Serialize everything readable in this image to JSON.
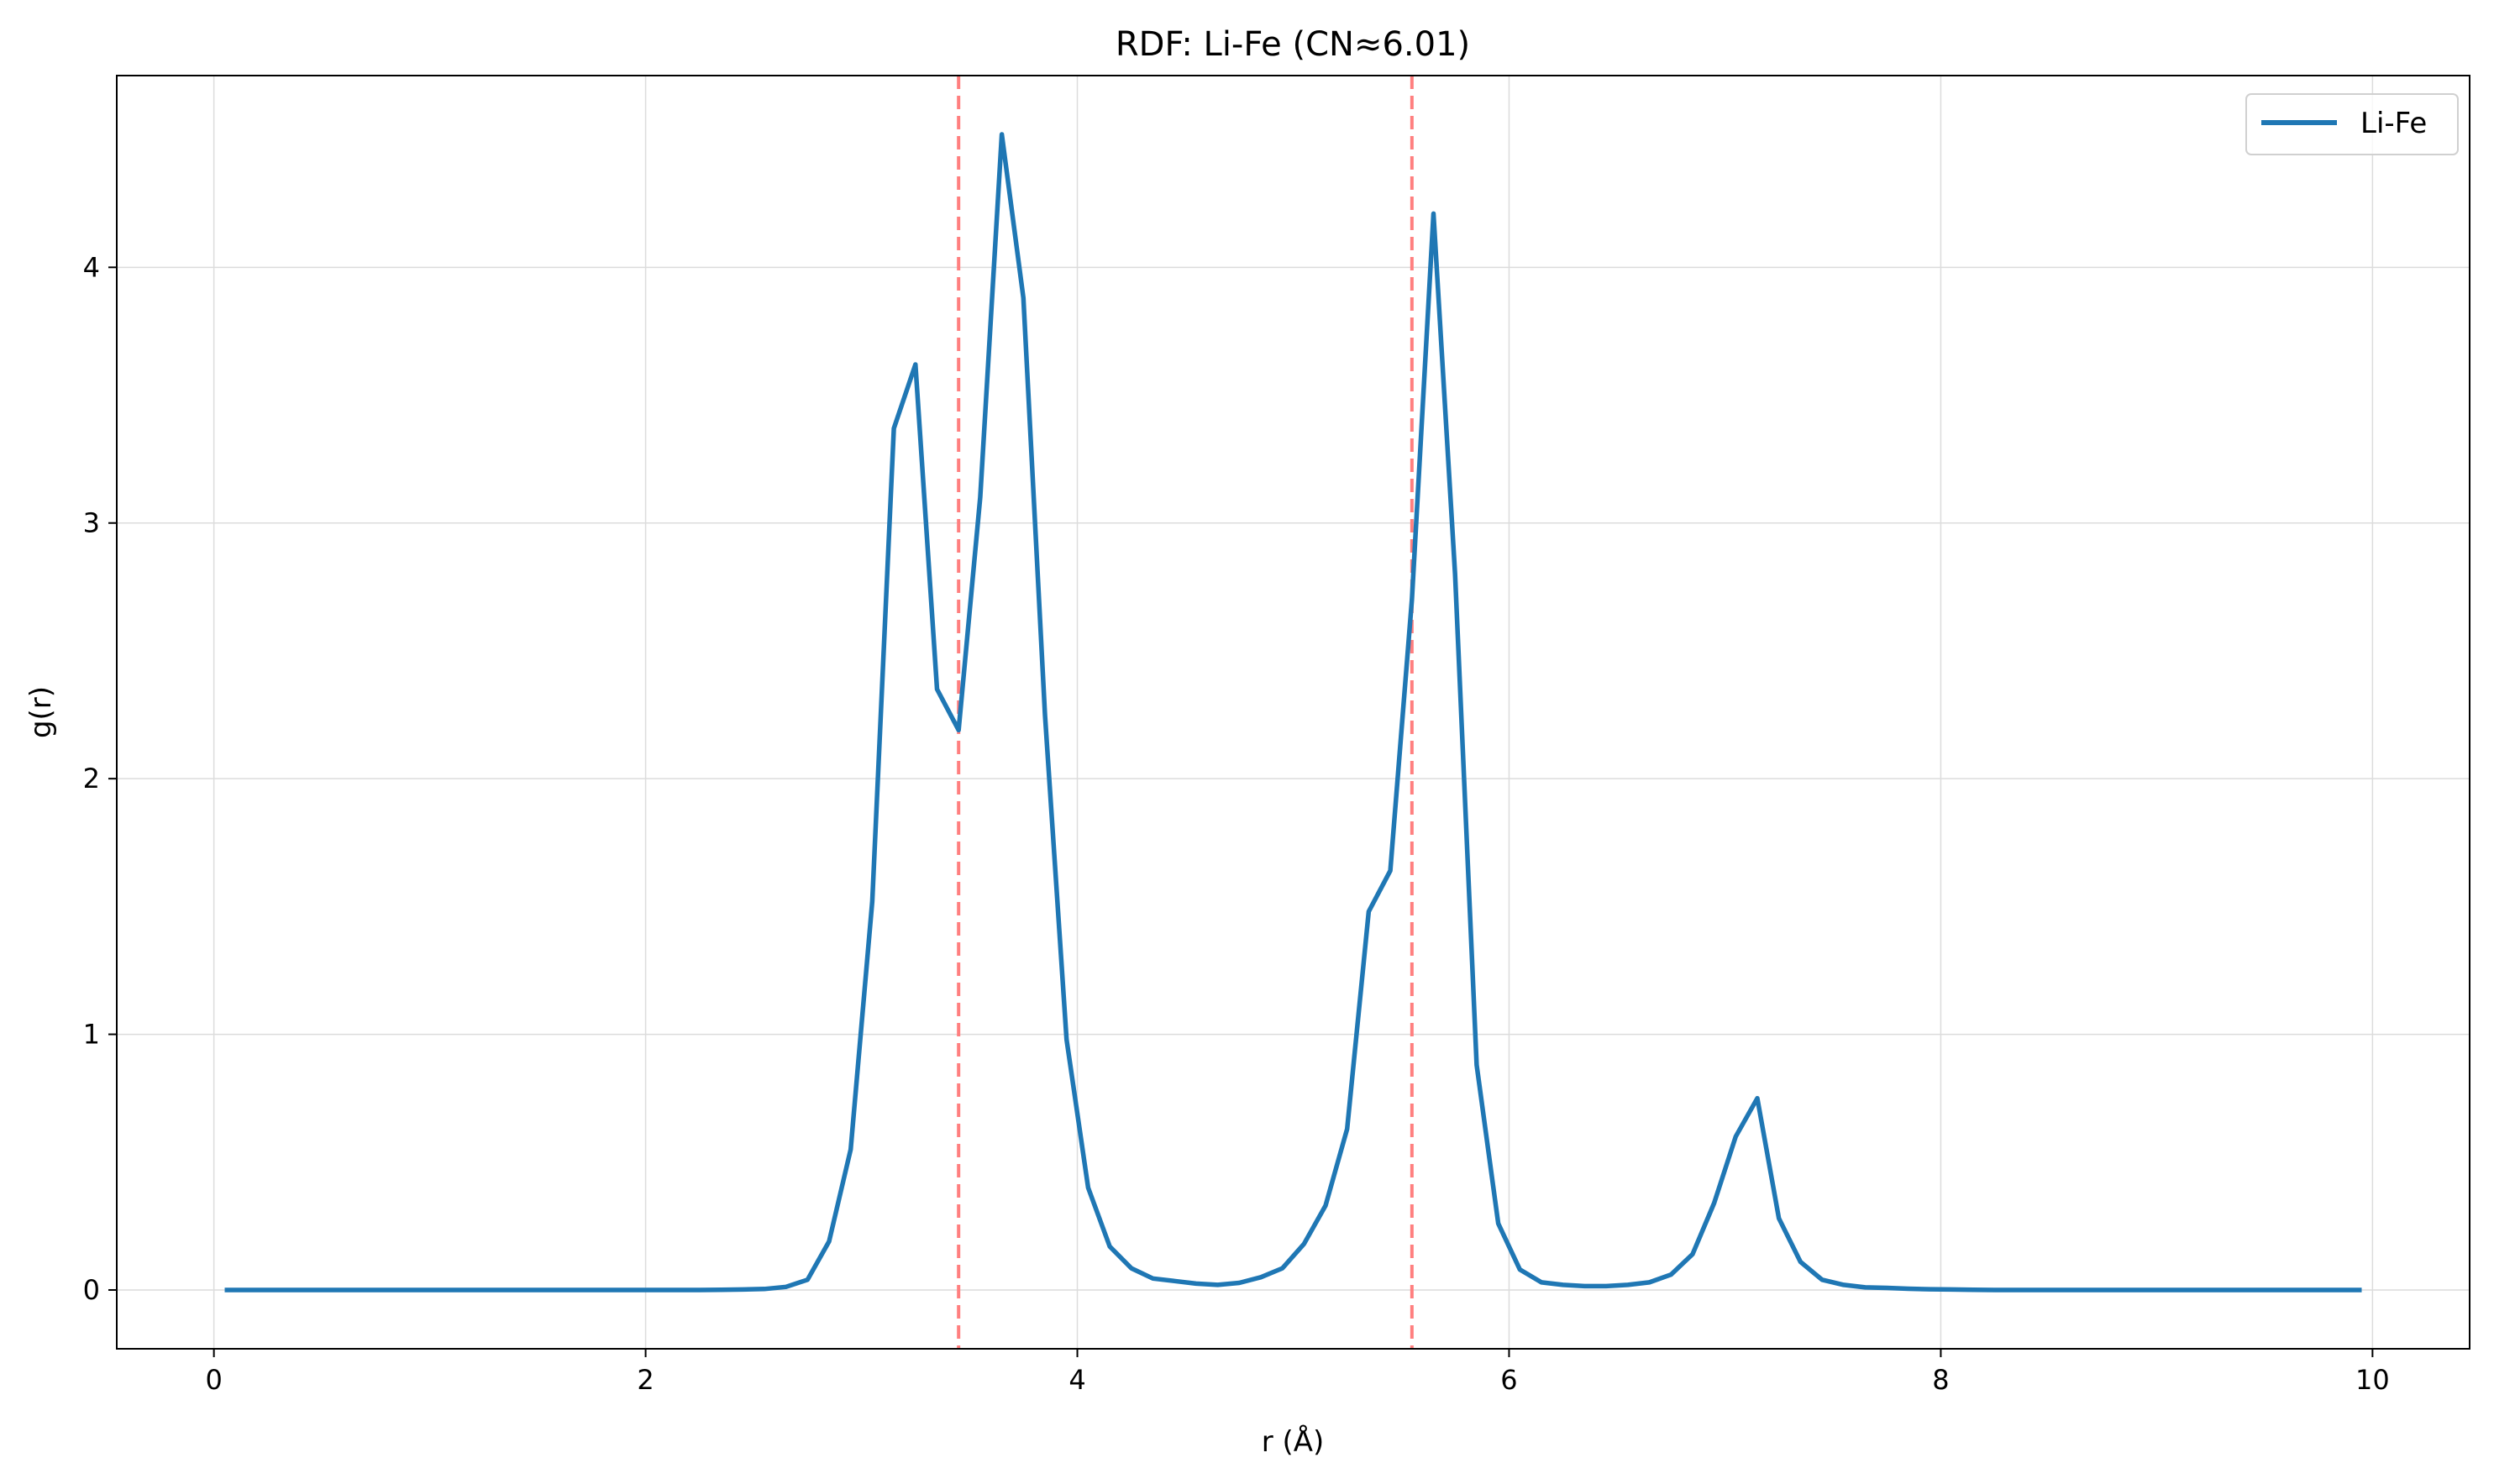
{
  "chart_data": {
    "type": "line",
    "title": "RDF: Li-Fe (CN≈6.01)",
    "xlabel": "r (Å)",
    "ylabel": "g(r)",
    "xlim": [
      -0.45,
      10.45
    ],
    "ylim": [
      -0.23,
      4.75
    ],
    "xticks": [
      0,
      2,
      4,
      6,
      8,
      10
    ],
    "yticks": [
      0,
      1,
      2,
      3,
      4
    ],
    "grid": true,
    "legend_position": "top-right",
    "vlines": [
      {
        "x": 3.45,
        "color": "#ff7f7f",
        "style": "dashed"
      },
      {
        "x": 5.55,
        "color": "#ff7f7f",
        "style": "dashed"
      }
    ],
    "series": [
      {
        "name": "Li-Fe",
        "color": "#1f77b4",
        "x": [
          0.05,
          0.15,
          0.25,
          0.35,
          0.45,
          0.55,
          0.65,
          0.75,
          0.85,
          0.95,
          1.05,
          1.15,
          1.25,
          1.35,
          1.45,
          1.55,
          1.65,
          1.75,
          1.85,
          1.95,
          2.05,
          2.15,
          2.25,
          2.35,
          2.45,
          2.55,
          2.65,
          2.75,
          2.85,
          2.95,
          3.05,
          3.15,
          3.25,
          3.35,
          3.45,
          3.55,
          3.65,
          3.75,
          3.85,
          3.95,
          4.05,
          4.15,
          4.25,
          4.35,
          4.45,
          4.55,
          4.65,
          4.75,
          4.85,
          4.95,
          5.05,
          5.15,
          5.25,
          5.35,
          5.45,
          5.55,
          5.65,
          5.75,
          5.85,
          5.95,
          6.05,
          6.15,
          6.25,
          6.35,
          6.45,
          6.55,
          6.65,
          6.75,
          6.85,
          6.95,
          7.05,
          7.15,
          7.25,
          7.35,
          7.45,
          7.55,
          7.65,
          7.75,
          7.85,
          7.95,
          8.05,
          8.15,
          8.25,
          8.35,
          8.45,
          8.55,
          8.65,
          8.75,
          8.85,
          8.95,
          9.05,
          9.15,
          9.25,
          9.35,
          9.45,
          9.55,
          9.65,
          9.75,
          9.85,
          9.95
        ],
        "values": [
          0.0,
          0.0,
          0.0,
          0.0,
          0.0,
          0.0,
          0.0,
          0.0,
          0.0,
          0.0,
          0.0,
          0.0,
          0.0,
          0.0,
          0.0,
          0.0,
          0.0,
          0.0,
          0.0,
          0.0,
          0.0,
          0.0,
          0.0,
          0.001,
          0.002,
          0.004,
          0.012,
          0.04,
          0.19,
          0.55,
          1.52,
          3.37,
          3.62,
          2.35,
          2.19,
          3.1,
          4.52,
          3.88,
          2.25,
          0.98,
          0.4,
          0.17,
          0.085,
          0.045,
          0.035,
          0.025,
          0.02,
          0.028,
          0.05,
          0.085,
          0.18,
          0.33,
          0.63,
          1.48,
          1.64,
          2.7,
          4.21,
          2.8,
          0.88,
          0.26,
          0.08,
          0.03,
          0.02,
          0.015,
          0.015,
          0.02,
          0.03,
          0.06,
          0.14,
          0.34,
          0.6,
          0.75,
          0.28,
          0.11,
          0.04,
          0.02,
          0.01,
          0.008,
          0.005,
          0.003,
          0.002,
          0.001,
          0.0,
          0.0,
          0.0,
          0.0,
          0.0,
          0.0,
          0.0,
          0.0,
          0.0,
          0.0,
          0.0,
          0.0,
          0.0,
          0.0,
          0.0,
          0.0,
          0.0,
          0.0
        ]
      }
    ]
  }
}
